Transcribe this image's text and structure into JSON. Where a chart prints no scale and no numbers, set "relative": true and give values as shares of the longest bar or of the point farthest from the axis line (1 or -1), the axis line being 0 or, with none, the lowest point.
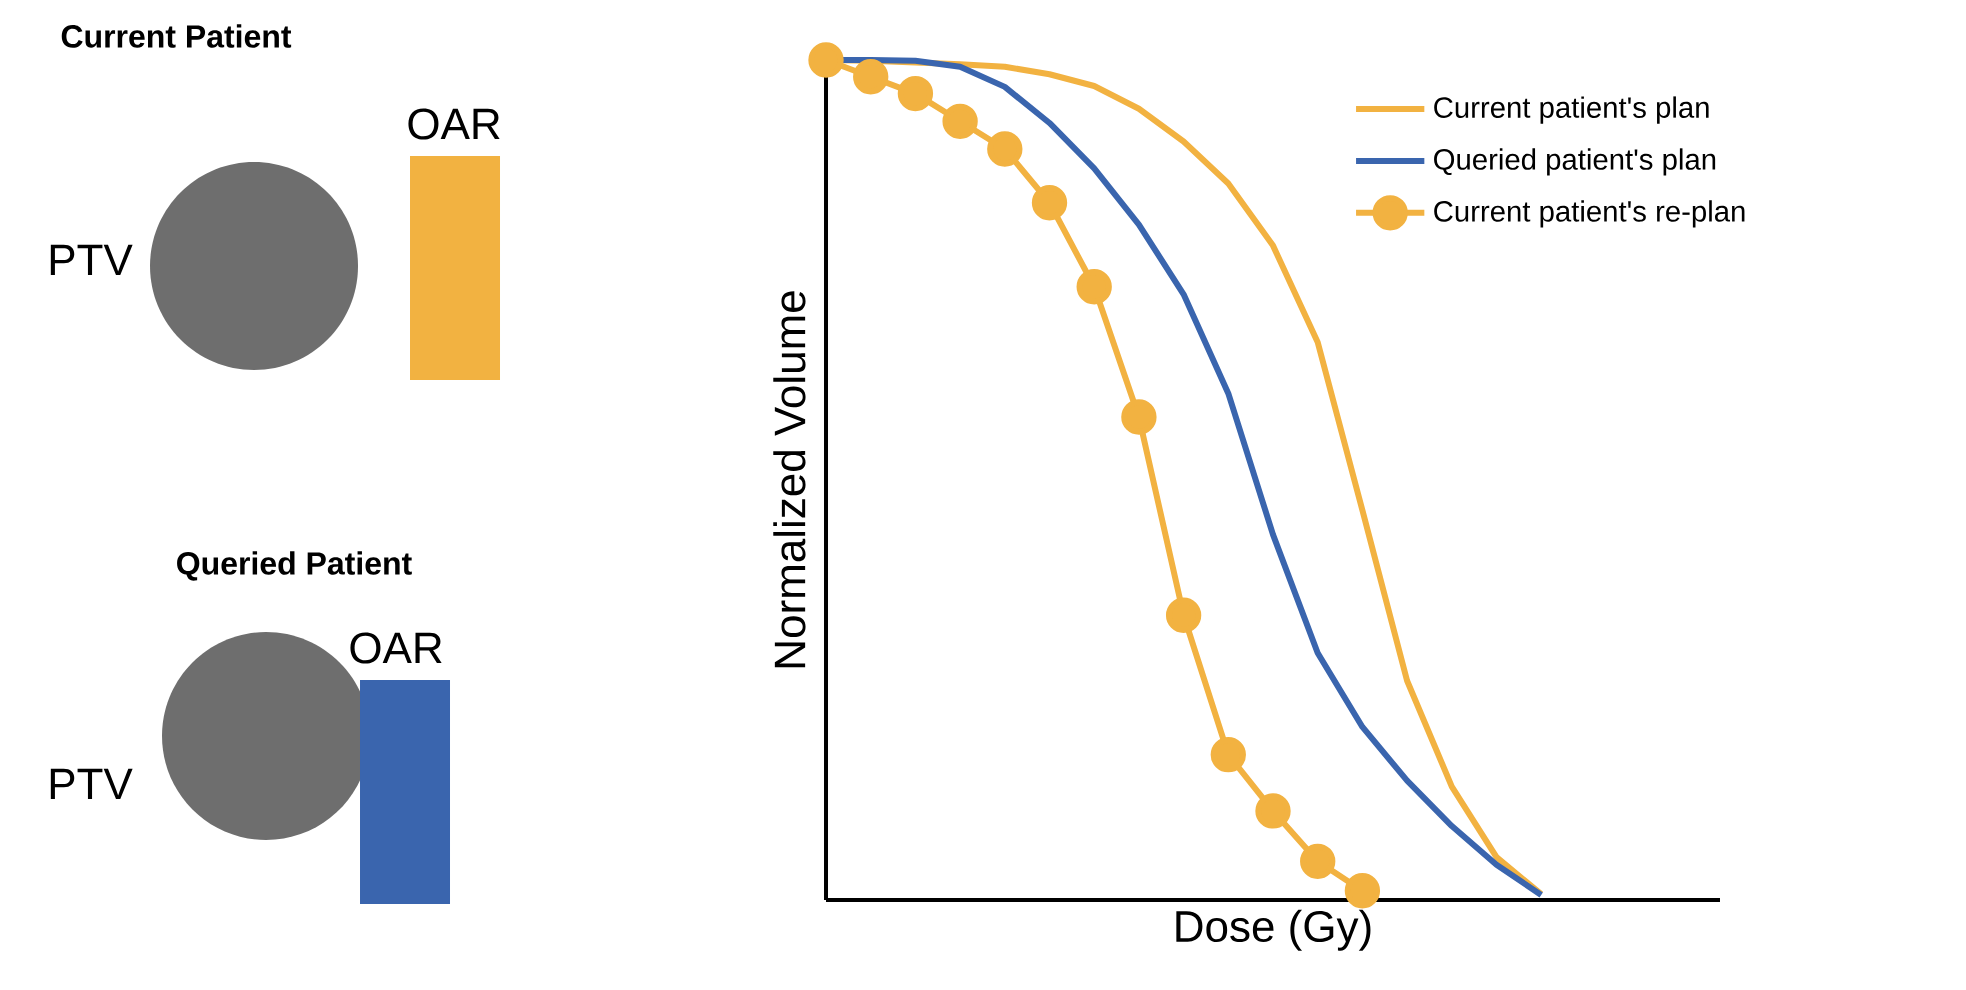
{
  "chart_data": {
    "type": "line",
    "relative": true,
    "xlabel": "Dose (Gy)",
    "ylabel": "Normalized Volume",
    "tick_labels": false,
    "legend": "top right",
    "annotations": [
      "Current Patient",
      "PTV",
      "OAR",
      "Queried Patient",
      "PTV",
      "OAR"
    ],
    "categories": [
      null,
      null,
      null,
      null,
      null,
      null,
      null,
      null,
      null,
      null,
      null,
      null,
      null,
      null,
      null,
      null,
      null,
      null,
      null,
      null,
      null
    ],
    "series": [
      {
        "name": "Current patient's plan",
        "color": "#f2b241",
        "marker": "none",
        "values": [
          1.0,
          0.999,
          0.997,
          0.995,
          0.992,
          0.983,
          0.969,
          0.942,
          0.903,
          0.853,
          0.779,
          0.664,
          0.464,
          0.261,
          0.135,
          0.051,
          0.007,
          null,
          null,
          null,
          null
        ]
      },
      {
        "name": "Queried patient's plan",
        "color": "#3a65ae",
        "marker": "none",
        "values": [
          1.0,
          1.0,
          0.999,
          0.992,
          0.968,
          0.925,
          0.871,
          0.804,
          0.721,
          0.603,
          0.435,
          0.294,
          0.206,
          0.142,
          0.088,
          0.042,
          0.006,
          null,
          null,
          null,
          null
        ]
      },
      {
        "name": "Current patient's re-plan",
        "color": "#f2b241",
        "marker": "circle",
        "values": [
          1.0,
          0.98,
          0.96,
          0.927,
          0.894,
          0.83,
          0.73,
          0.575,
          0.339,
          0.173,
          0.106,
          0.046,
          0.011,
          null,
          null,
          null,
          null,
          null,
          null,
          null,
          null
        ]
      }
    ]
  }
}
